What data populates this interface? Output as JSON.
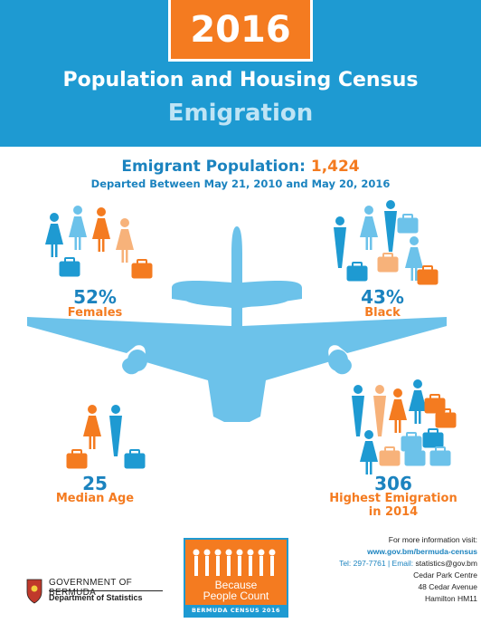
{
  "header": {
    "year": "2016",
    "title": "Population and Housing Census",
    "subtitle": "Emigration"
  },
  "emigrant_population": {
    "label": "Emigrant Population:",
    "value": "1,424",
    "departed": "Departed Between May 21, 2010 and May 20, 2016"
  },
  "stats": {
    "females": {
      "value": "52%",
      "label": "Females"
    },
    "black": {
      "value": "43%",
      "label": "Black"
    },
    "median_age": {
      "value": "25",
      "label": "Median Age"
    },
    "highest": {
      "value": "306",
      "label_line1": "Highest Emigration",
      "label_line2": "in 2014"
    }
  },
  "footer": {
    "info_heading": "For more information visit:",
    "url": "www.gov.bm/bermuda-census",
    "tel": "Tel: 297-7761",
    "email_label": "Email:",
    "email": "statistics@gov.bm",
    "address1": "Cedar Park Centre",
    "address2": "48 Cedar Avenue",
    "address3": "Hamilton HM11",
    "government": "GOVERNMENT OF BERMUDA",
    "department": "Department of Statistics",
    "badge_line1": "Because",
    "badge_line2": "People Count",
    "badge_strip": "BERMUDA CENSUS 2016"
  },
  "colors": {
    "blue": "#1e9ad2",
    "light_blue": "#6cc2ea",
    "orange": "#f47b20",
    "peach": "#f7b27a"
  },
  "icons": [
    "airplane-icon",
    "person-icon",
    "suitcase-icon",
    "coat-of-arms-icon"
  ]
}
